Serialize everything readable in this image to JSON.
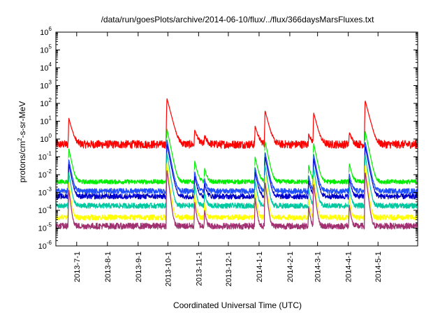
{
  "chart_data": {
    "type": "line",
    "title": "/data/run/goesPlots/archive/2014-06-10/flux/../flux/366daysMarsFluxes.txt",
    "xlabel": "Coordinated Universal Time (UTC)",
    "ylabel_prefix": "protons/cm",
    "ylabel_sup": "2",
    "ylabel_suffix": "-s-sr-MeV",
    "yscale": "log",
    "ylim": [
      "1e-6",
      "1e6"
    ],
    "xlim": [
      "2013-06-10",
      "2014-06-10"
    ],
    "y_ticks": [
      {
        "base": "10",
        "exp": "-6",
        "value": 1e-06
      },
      {
        "base": "10",
        "exp": "-5",
        "value": 1e-05
      },
      {
        "base": "10",
        "exp": "-4",
        "value": 0.0001
      },
      {
        "base": "10",
        "exp": "-3",
        "value": 0.001
      },
      {
        "base": "10",
        "exp": "-2",
        "value": 0.01
      },
      {
        "base": "10",
        "exp": "-1",
        "value": 0.1
      },
      {
        "base": "10",
        "exp": "0",
        "value": 1
      },
      {
        "base": "10",
        "exp": "1",
        "value": 10
      },
      {
        "base": "10",
        "exp": "2",
        "value": 100
      },
      {
        "base": "10",
        "exp": "3",
        "value": 1000
      },
      {
        "base": "10",
        "exp": "4",
        "value": 10000
      },
      {
        "base": "10",
        "exp": "5",
        "value": 100000
      },
      {
        "base": "10",
        "exp": "6",
        "value": 1000000
      }
    ],
    "x_ticks": [
      {
        "label": "2013-7-1",
        "date": "2013-07-01"
      },
      {
        "label": "2013-8-1",
        "date": "2013-08-01"
      },
      {
        "label": "2013-9-1",
        "date": "2013-09-01"
      },
      {
        "label": "2013-10-1",
        "date": "2013-10-01"
      },
      {
        "label": "2013-11-1",
        "date": "2013-11-01"
      },
      {
        "label": "2013-12-1",
        "date": "2013-12-01"
      },
      {
        "label": "2014-1-1",
        "date": "2014-01-01"
      },
      {
        "label": "2014-2-1",
        "date": "2014-02-01"
      },
      {
        "label": "2014-3-1",
        "date": "2014-03-01"
      },
      {
        "label": "2014-4-1",
        "date": "2014-04-01"
      },
      {
        "label": "2014-5-1",
        "date": "2014-05-01"
      }
    ],
    "grid": false,
    "events": [
      {
        "date": "2013-06-23",
        "peak": 15
      },
      {
        "date": "2013-09-30",
        "peak": 200
      },
      {
        "date": "2013-10-28",
        "peak": 3
      },
      {
        "date": "2013-11-07",
        "peak": 1
      },
      {
        "date": "2013-12-28",
        "peak": 5
      },
      {
        "date": "2014-01-07",
        "peak": 40
      },
      {
        "date": "2014-02-20",
        "peak": 1.5
      },
      {
        "date": "2014-02-25",
        "peak": 30
      },
      {
        "date": "2014-04-02",
        "peak": 2
      },
      {
        "date": "2014-04-18",
        "peak": 150
      }
    ],
    "series": [
      {
        "color": "#ff0000",
        "baseline": 0.5,
        "noise": 0.45,
        "response": 1.0,
        "decay_days": 2.0
      },
      {
        "color": "#00ee00",
        "baseline": 0.004,
        "noise": 0.25,
        "response": 0.22,
        "decay_days": 1.6
      },
      {
        "color": "#ffffff",
        "baseline": 0.002,
        "noise": 0.2,
        "response": 0.1,
        "decay_days": 1.4
      },
      {
        "color": "#1f4fff",
        "baseline": 0.0012,
        "noise": 0.3,
        "response": 0.1,
        "decay_days": 1.5
      },
      {
        "color": "#0000cc",
        "baseline": 0.0006,
        "noise": 0.3,
        "response": 0.08,
        "decay_days": 1.5
      },
      {
        "color": "#00c8a0",
        "baseline": 0.00018,
        "noise": 0.3,
        "response": 0.05,
        "decay_days": 1.2
      },
      {
        "color": "#ffff00",
        "baseline": 4e-05,
        "noise": 0.3,
        "response": 0.03,
        "decay_days": 1.0
      },
      {
        "color": "#a03070",
        "baseline": 1.3e-05,
        "noise": 0.35,
        "response": 0.02,
        "decay_days": 1.0
      }
    ]
  }
}
